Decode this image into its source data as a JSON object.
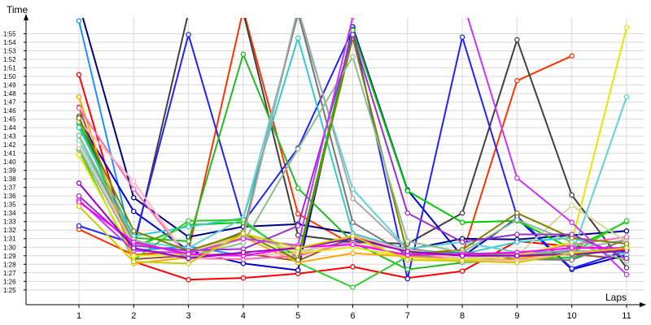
{
  "chart_data": {
    "type": "line",
    "title": "",
    "xlabel": "Laps",
    "ylabel": "Time",
    "x": [
      1,
      2,
      3,
      4,
      5,
      6,
      7,
      8,
      9,
      10,
      11
    ],
    "xlim": [
      0,
      11.4
    ],
    "ylim": [
      84.0,
      117.0
    ],
    "grid": true,
    "legend": "none",
    "y_tick_labels": [
      "1:25",
      "1:26",
      "1:27",
      "1:28",
      "1:29",
      "1:30",
      "1:31",
      "1:32",
      "1:33",
      "1:34",
      "1:35",
      "1:36",
      "1:37",
      "1:38",
      "1:39",
      "1:40",
      "1:41",
      "1:42",
      "1:43",
      "1:44",
      "1:45",
      "1:46",
      "1:47",
      "1:48",
      "1:49",
      "1:50",
      "1:51",
      "1:52",
      "1:53",
      "1:54",
      "1:55"
    ],
    "series": [
      {
        "color": "#1e90ff",
        "values": [
          116.5,
          89.6,
          90.1,
          89.0,
          89.4,
          90.8,
          89.8,
          89.1,
          89.4,
          89.5,
          89.7
        ]
      },
      {
        "color": "#ff0000",
        "values": [
          110.2,
          88.3,
          86.2,
          86.4,
          86.9,
          87.7,
          86.4,
          87.2,
          90.7,
          90.1,
          89.7
        ]
      },
      {
        "color": "#ff3300",
        "values": [
          92.1,
          89.1,
          89.6,
          117.8,
          93.9,
          90.3,
          89.8,
          89.1,
          109.5,
          112.4,
          null
        ]
      },
      {
        "color": "#a0522d",
        "values": [
          106.4,
          88.6,
          89.0,
          89.3,
          88.4,
          91.2,
          89.6,
          89.3,
          88.9,
          89.2,
          88.6
        ]
      },
      {
        "color": "#000080",
        "values": [
          118.5,
          95.8,
          91.2,
          92.4,
          92.7,
          91.6,
          89.7,
          91.0,
          90.9,
          91.4,
          91.9
        ]
      },
      {
        "color": "#404040",
        "values": [
          105.3,
          89.9,
          117.5,
          117.5,
          91.4,
          90.6,
          90.4,
          94.0,
          114.3,
          96.1,
          87.6
        ]
      },
      {
        "color": "#0000cd",
        "values": [
          104.9,
          94.2,
          89.6,
          88.1,
          87.3,
          115.8,
          96.7,
          88.9,
          93.4,
          87.4,
          89.1
        ]
      },
      {
        "color": "#2222ff",
        "values": [
          92.5,
          90.4,
          114.9,
          92.9,
          101.6,
          115.5,
          86.3,
          114.6,
          93.6,
          87.5,
          89.6
        ]
      },
      {
        "color": "#22bb22",
        "values": [
          104.5,
          91.1,
          90.7,
          112.6,
          96.9,
          90.6,
          87.4,
          88.2,
          88.6,
          88.8,
          90.1
        ]
      },
      {
        "color": "#00cc00",
        "values": [
          104.6,
          90.0,
          92.6,
          92.9,
          88.8,
          115.4,
          96.6,
          92.9,
          93.1,
          89.8,
          93.0
        ]
      },
      {
        "color": "#33cccc",
        "values": [
          104.0,
          91.3,
          92.4,
          93.4,
          114.5,
          91.6,
          89.7,
          89.2,
          90.6,
          91.1,
          89.1
        ]
      },
      {
        "color": "#5fd3d3",
        "values": [
          102.5,
          90.7,
          89.9,
          93.4,
          117.2,
          96.8,
          89.8,
          90.6,
          89.4,
          89.1,
          107.6
        ]
      },
      {
        "color": "#33cc33",
        "values": [
          101.4,
          88.5,
          93.1,
          93.2,
          88.2,
          85.3,
          88.9,
          89.1,
          89.2,
          89.3,
          93.1
        ]
      },
      {
        "color": "#777777",
        "values": [
          103.1,
          90.5,
          89.3,
          91.8,
          117.5,
          92.9,
          89.1,
          89.5,
          88.6,
          88.5,
          90.9
        ]
      },
      {
        "color": "#a9a9a9",
        "values": [
          101.6,
          89.9,
          88.6,
          91.2,
          118.0,
          95.7,
          89.7,
          88.2,
          89.1,
          89.7,
          90.9
        ]
      },
      {
        "color": "#ffa500",
        "values": [
          107.6,
          88.1,
          88.8,
          91.2,
          88.2,
          89.3,
          88.9,
          88.4,
          88.6,
          89.4,
          89.6
        ]
      },
      {
        "color": "#ff69b4",
        "values": [
          106.3,
          96.8,
          88.7,
          88.6,
          89.0,
          90.6,
          88.9,
          88.7,
          89.2,
          90.3,
          91.2
        ]
      },
      {
        "color": "#ffb6c1",
        "values": [
          104.8,
          97.7,
          88.6,
          89.1,
          89.3,
          91.4,
          89.6,
          88.5,
          88.4,
          89.4,
          89.9
        ]
      },
      {
        "color": "#e6e600",
        "values": [
          100.8,
          89.0,
          89.2,
          91.5,
          89.3,
          90.0,
          88.8,
          88.5,
          89.0,
          90.6,
          115.7
        ]
      },
      {
        "color": "#d4d4a0",
        "values": [
          102.0,
          90.3,
          89.5,
          91.3,
          89.6,
          90.4,
          89.7,
          88.7,
          89.0,
          94.9,
          90.6
        ]
      },
      {
        "color": "#808000",
        "values": [
          105.1,
          91.9,
          89.6,
          91.6,
          88.5,
          114.5,
          89.2,
          89.7,
          94.0,
          91.1,
          90.4
        ]
      },
      {
        "color": "#8fbc8f",
        "values": [
          103.1,
          90.9,
          88.9,
          90.5,
          101.5,
          112.3,
          90.7,
          89.4,
          93.2,
          90.6,
          88.4
        ]
      },
      {
        "color": "#9932cc",
        "values": [
          96.0,
          90.2,
          89.6,
          89.8,
          92.5,
          114.9,
          94.0,
          90.6,
          91.5,
          91.5,
          88.7
        ]
      },
      {
        "color": "#cc33ff",
        "values": [
          95.5,
          89.6,
          89.3,
          91.0,
          90.2,
          117.0,
          118.0,
          119.0,
          98.1,
          92.9,
          86.8
        ]
      },
      {
        "color": "#ff00ff",
        "values": [
          95.3,
          90.6,
          89.2,
          89.0,
          90.0,
          90.3,
          89.1,
          89.2,
          89.4,
          89.9,
          89.9
        ]
      },
      {
        "color": "#9900cc",
        "values": [
          97.5,
          89.9,
          88.7,
          89.4,
          89.9,
          91.0,
          89.5,
          89.0,
          89.0,
          89.2,
          89.6
        ]
      },
      {
        "color": "#cccc00",
        "values": [
          94.8,
          88.3,
          88.1,
          91.6,
          89.9,
          91.3,
          88.5,
          88.4,
          88.2,
          89.3,
          89.9
        ]
      }
    ]
  }
}
